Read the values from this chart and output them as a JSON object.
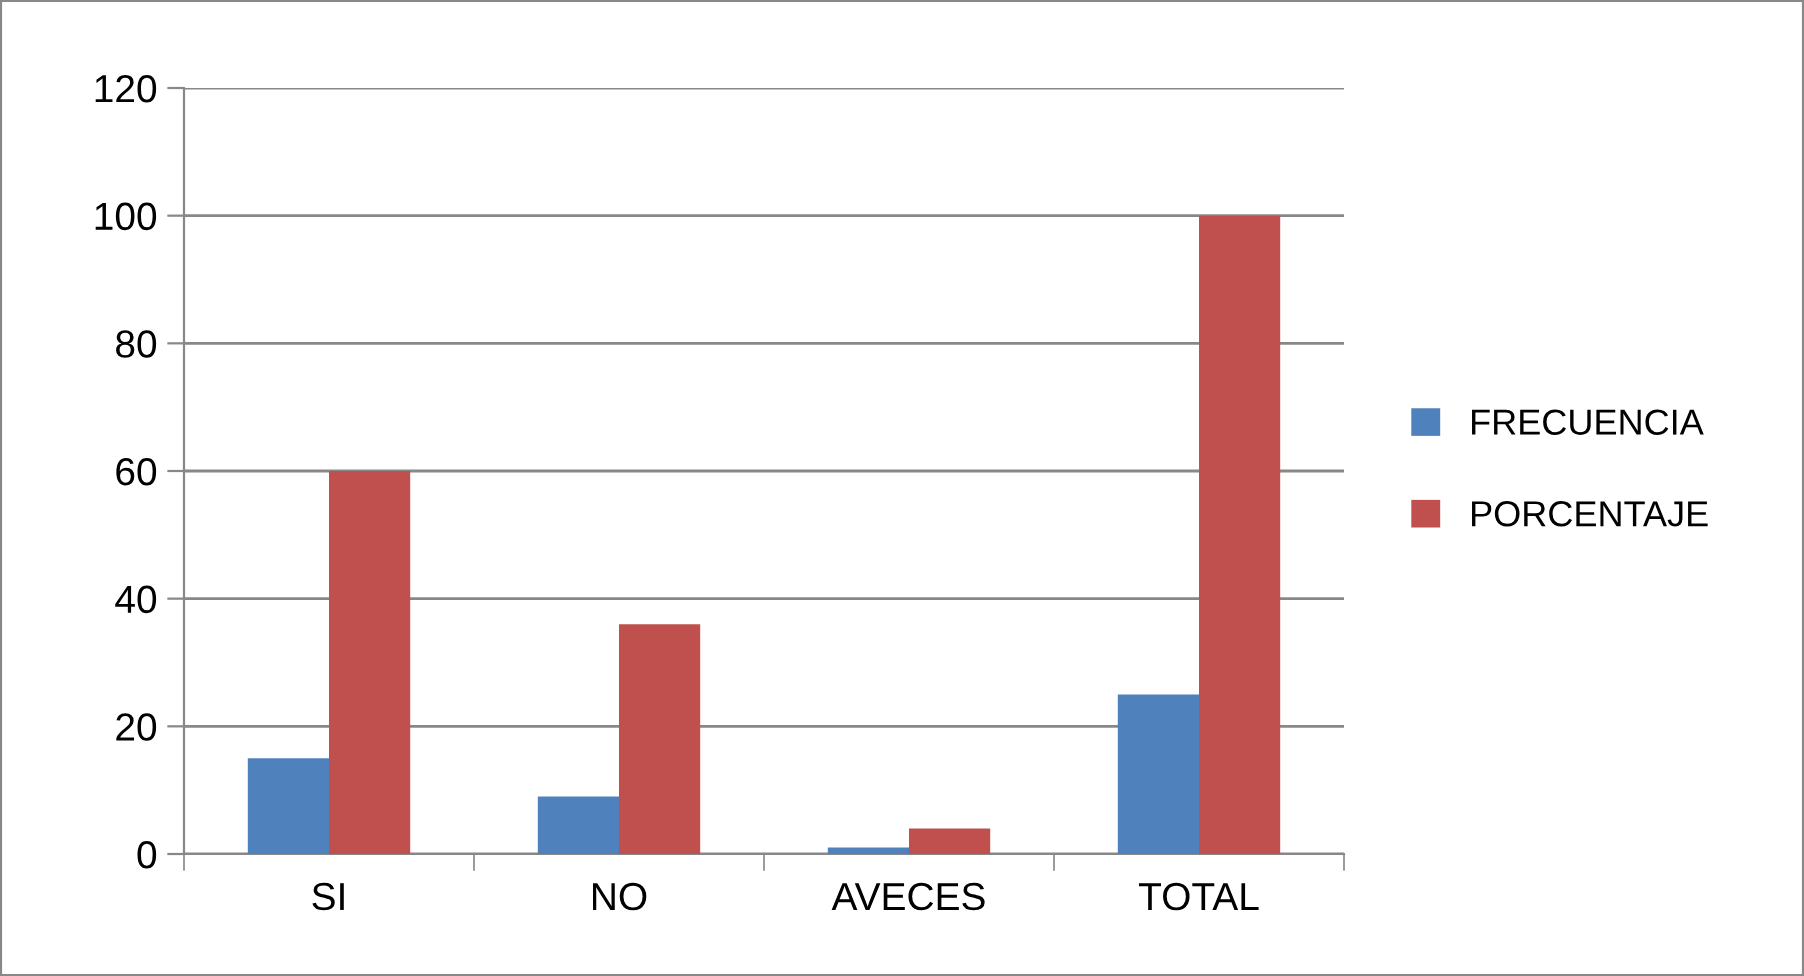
{
  "chart_data": {
    "type": "bar",
    "categories": [
      "SI",
      "NO",
      "AVECES",
      "TOTAL"
    ],
    "series": [
      {
        "name": "FRECUENCIA",
        "color": "#4f81bd",
        "values": [
          15,
          9,
          1,
          25
        ]
      },
      {
        "name": "PORCENTAJE",
        "color": "#c0504d",
        "values": [
          60,
          36,
          4,
          100
        ]
      }
    ],
    "ylim": [
      0,
      120
    ],
    "yticks": [
      0,
      20,
      40,
      60,
      80,
      100,
      120
    ],
    "grid": "y",
    "legend": "right"
  }
}
